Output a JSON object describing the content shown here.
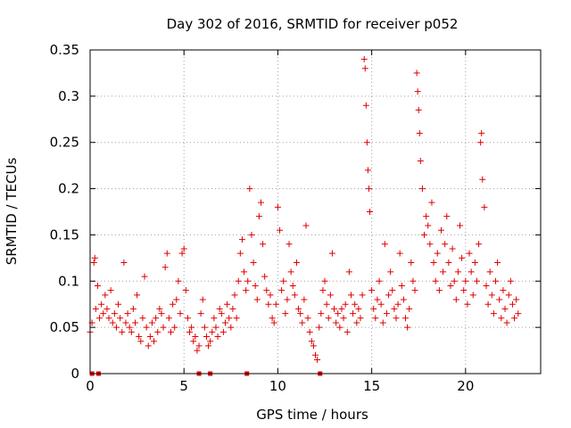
{
  "chart_data": {
    "type": "scatter",
    "title": "Day 302 of 2016, SRMTID for receiver p052",
    "xlabel": "GPS time / hours",
    "ylabel": "SRMTID / TECUs",
    "xlim": [
      0,
      24
    ],
    "ylim": [
      0,
      0.35
    ],
    "xticks": [
      0,
      5,
      10,
      15,
      20
    ],
    "yticks": [
      0,
      0.05,
      0.1,
      0.15,
      0.2,
      0.25,
      0.3,
      0.35
    ],
    "ytick_labels": [
      "0",
      "0.05",
      "0.1",
      "0.15",
      "0.2",
      "0.25",
      "0.3",
      "0.35"
    ],
    "grid": true,
    "legend": "none",
    "marker": "+",
    "color": "#e00000",
    "series": [
      {
        "name": "SRMTID",
        "points": [
          [
            0.0,
            0.045
          ],
          [
            0.1,
            0.055
          ],
          [
            0.2,
            0.12
          ],
          [
            0.25,
            0.125
          ],
          [
            0.3,
            0.07
          ],
          [
            0.4,
            0.095
          ],
          [
            0.5,
            0.06
          ],
          [
            0.6,
            0.075
          ],
          [
            0.7,
            0.065
          ],
          [
            0.8,
            0.085
          ],
          [
            0.9,
            0.07
          ],
          [
            1.0,
            0.06
          ],
          [
            1.1,
            0.09
          ],
          [
            1.2,
            0.055
          ],
          [
            1.3,
            0.065
          ],
          [
            1.4,
            0.05
          ],
          [
            1.5,
            0.075
          ],
          [
            1.6,
            0.06
          ],
          [
            1.7,
            0.045
          ],
          [
            1.8,
            0.12
          ],
          [
            1.9,
            0.055
          ],
          [
            2.0,
            0.065
          ],
          [
            2.1,
            0.05
          ],
          [
            2.2,
            0.045
          ],
          [
            2.3,
            0.07
          ],
          [
            2.4,
            0.055
          ],
          [
            2.5,
            0.085
          ],
          [
            2.6,
            0.04
          ],
          [
            2.7,
            0.035
          ],
          [
            2.8,
            0.06
          ],
          [
            2.9,
            0.105
          ],
          [
            3.0,
            0.05
          ],
          [
            3.1,
            0.03
          ],
          [
            3.2,
            0.04
          ],
          [
            3.3,
            0.055
          ],
          [
            3.4,
            0.035
          ],
          [
            3.5,
            0.06
          ],
          [
            3.6,
            0.045
          ],
          [
            3.7,
            0.07
          ],
          [
            3.8,
            0.065
          ],
          [
            3.9,
            0.05
          ],
          [
            4.0,
            0.115
          ],
          [
            4.1,
            0.13
          ],
          [
            4.2,
            0.06
          ],
          [
            4.3,
            0.045
          ],
          [
            4.4,
            0.075
          ],
          [
            4.5,
            0.05
          ],
          [
            4.6,
            0.08
          ],
          [
            4.7,
            0.1
          ],
          [
            4.8,
            0.065
          ],
          [
            4.9,
            0.13
          ],
          [
            5.0,
            0.135
          ],
          [
            5.1,
            0.09
          ],
          [
            5.2,
            0.06
          ],
          [
            5.3,
            0.045
          ],
          [
            5.4,
            0.05
          ],
          [
            5.5,
            0.035
          ],
          [
            5.6,
            0.04
          ],
          [
            5.7,
            0.025
          ],
          [
            5.8,
            0.03
          ],
          [
            5.9,
            0.065
          ],
          [
            6.0,
            0.08
          ],
          [
            6.1,
            0.05
          ],
          [
            6.2,
            0.04
          ],
          [
            6.3,
            0.03
          ],
          [
            6.4,
            0.035
          ],
          [
            6.5,
            0.045
          ],
          [
            6.6,
            0.06
          ],
          [
            6.7,
            0.05
          ],
          [
            6.8,
            0.04
          ],
          [
            6.9,
            0.07
          ],
          [
            7.0,
            0.065
          ],
          [
            7.1,
            0.045
          ],
          [
            7.2,
            0.055
          ],
          [
            7.3,
            0.075
          ],
          [
            7.4,
            0.06
          ],
          [
            7.5,
            0.05
          ],
          [
            7.6,
            0.07
          ],
          [
            7.7,
            0.085
          ],
          [
            7.8,
            0.06
          ],
          [
            7.9,
            0.1
          ],
          [
            8.0,
            0.13
          ],
          [
            8.1,
            0.145
          ],
          [
            8.2,
            0.11
          ],
          [
            8.3,
            0.09
          ],
          [
            8.4,
            0.1
          ],
          [
            8.5,
            0.2
          ],
          [
            8.6,
            0.15
          ],
          [
            8.7,
            0.12
          ],
          [
            8.8,
            0.095
          ],
          [
            8.9,
            0.08
          ],
          [
            9.0,
            0.17
          ],
          [
            9.1,
            0.185
          ],
          [
            9.2,
            0.14
          ],
          [
            9.3,
            0.105
          ],
          [
            9.4,
            0.09
          ],
          [
            9.5,
            0.075
          ],
          [
            9.6,
            0.085
          ],
          [
            9.7,
            0.06
          ],
          [
            9.8,
            0.055
          ],
          [
            9.9,
            0.075
          ],
          [
            10.0,
            0.18
          ],
          [
            10.1,
            0.155
          ],
          [
            10.2,
            0.09
          ],
          [
            10.3,
            0.1
          ],
          [
            10.4,
            0.065
          ],
          [
            10.5,
            0.08
          ],
          [
            10.6,
            0.14
          ],
          [
            10.7,
            0.11
          ],
          [
            10.8,
            0.095
          ],
          [
            10.9,
            0.085
          ],
          [
            11.0,
            0.12
          ],
          [
            11.1,
            0.07
          ],
          [
            11.2,
            0.065
          ],
          [
            11.3,
            0.055
          ],
          [
            11.4,
            0.08
          ],
          [
            11.5,
            0.16
          ],
          [
            11.6,
            0.06
          ],
          [
            11.7,
            0.045
          ],
          [
            11.8,
            0.035
          ],
          [
            11.9,
            0.03
          ],
          [
            12.0,
            0.02
          ],
          [
            12.1,
            0.015
          ],
          [
            12.2,
            0.05
          ],
          [
            12.3,
            0.065
          ],
          [
            12.4,
            0.09
          ],
          [
            12.5,
            0.1
          ],
          [
            12.6,
            0.075
          ],
          [
            12.7,
            0.06
          ],
          [
            12.8,
            0.085
          ],
          [
            12.9,
            0.13
          ],
          [
            13.0,
            0.07
          ],
          [
            13.1,
            0.055
          ],
          [
            13.2,
            0.065
          ],
          [
            13.3,
            0.05
          ],
          [
            13.4,
            0.07
          ],
          [
            13.5,
            0.06
          ],
          [
            13.6,
            0.075
          ],
          [
            13.7,
            0.045
          ],
          [
            13.8,
            0.11
          ],
          [
            13.9,
            0.085
          ],
          [
            14.0,
            0.065
          ],
          [
            14.1,
            0.075
          ],
          [
            14.2,
            0.055
          ],
          [
            14.3,
            0.07
          ],
          [
            14.4,
            0.06
          ],
          [
            14.5,
            0.085
          ],
          [
            14.6,
            0.34
          ],
          [
            14.65,
            0.33
          ],
          [
            14.7,
            0.29
          ],
          [
            14.75,
            0.25
          ],
          [
            14.8,
            0.22
          ],
          [
            14.85,
            0.2
          ],
          [
            14.9,
            0.175
          ],
          [
            15.0,
            0.09
          ],
          [
            15.1,
            0.07
          ],
          [
            15.2,
            0.06
          ],
          [
            15.3,
            0.08
          ],
          [
            15.4,
            0.1
          ],
          [
            15.5,
            0.075
          ],
          [
            15.6,
            0.055
          ],
          [
            15.7,
            0.14
          ],
          [
            15.8,
            0.065
          ],
          [
            15.9,
            0.085
          ],
          [
            16.0,
            0.11
          ],
          [
            16.1,
            0.09
          ],
          [
            16.2,
            0.07
          ],
          [
            16.3,
            0.06
          ],
          [
            16.4,
            0.075
          ],
          [
            16.5,
            0.13
          ],
          [
            16.6,
            0.095
          ],
          [
            16.7,
            0.08
          ],
          [
            16.8,
            0.06
          ],
          [
            16.9,
            0.05
          ],
          [
            17.0,
            0.07
          ],
          [
            17.1,
            0.12
          ],
          [
            17.2,
            0.1
          ],
          [
            17.3,
            0.09
          ],
          [
            17.4,
            0.325
          ],
          [
            17.45,
            0.305
          ],
          [
            17.5,
            0.285
          ],
          [
            17.55,
            0.26
          ],
          [
            17.6,
            0.23
          ],
          [
            17.7,
            0.2
          ],
          [
            17.8,
            0.15
          ],
          [
            17.9,
            0.17
          ],
          [
            18.0,
            0.16
          ],
          [
            18.1,
            0.14
          ],
          [
            18.2,
            0.185
          ],
          [
            18.3,
            0.12
          ],
          [
            18.4,
            0.1
          ],
          [
            18.5,
            0.13
          ],
          [
            18.6,
            0.09
          ],
          [
            18.7,
            0.155
          ],
          [
            18.8,
            0.11
          ],
          [
            18.9,
            0.14
          ],
          [
            19.0,
            0.17
          ],
          [
            19.1,
            0.12
          ],
          [
            19.2,
            0.095
          ],
          [
            19.3,
            0.135
          ],
          [
            19.4,
            0.1
          ],
          [
            19.5,
            0.08
          ],
          [
            19.6,
            0.11
          ],
          [
            19.7,
            0.16
          ],
          [
            19.8,
            0.125
          ],
          [
            19.9,
            0.09
          ],
          [
            20.0,
            0.1
          ],
          [
            20.1,
            0.075
          ],
          [
            20.2,
            0.13
          ],
          [
            20.3,
            0.11
          ],
          [
            20.4,
            0.085
          ],
          [
            20.5,
            0.12
          ],
          [
            20.6,
            0.1
          ],
          [
            20.7,
            0.14
          ],
          [
            20.8,
            0.25
          ],
          [
            20.85,
            0.26
          ],
          [
            20.9,
            0.21
          ],
          [
            21.0,
            0.18
          ],
          [
            21.1,
            0.095
          ],
          [
            21.2,
            0.075
          ],
          [
            21.3,
            0.11
          ],
          [
            21.4,
            0.085
          ],
          [
            21.5,
            0.065
          ],
          [
            21.6,
            0.1
          ],
          [
            21.7,
            0.12
          ],
          [
            21.8,
            0.08
          ],
          [
            21.9,
            0.06
          ],
          [
            22.0,
            0.09
          ],
          [
            22.1,
            0.07
          ],
          [
            22.2,
            0.055
          ],
          [
            22.3,
            0.085
          ],
          [
            22.4,
            0.1
          ],
          [
            22.5,
            0.075
          ],
          [
            22.6,
            0.06
          ],
          [
            22.7,
            0.08
          ],
          [
            22.8,
            0.065
          ]
        ]
      },
      {
        "name": "zero-value markers",
        "marker": "square",
        "points": [
          [
            0.1,
            0.0
          ],
          [
            0.45,
            0.0
          ],
          [
            5.8,
            0.0
          ],
          [
            6.4,
            0.0
          ],
          [
            8.35,
            0.0
          ],
          [
            12.25,
            0.0
          ]
        ]
      }
    ]
  }
}
